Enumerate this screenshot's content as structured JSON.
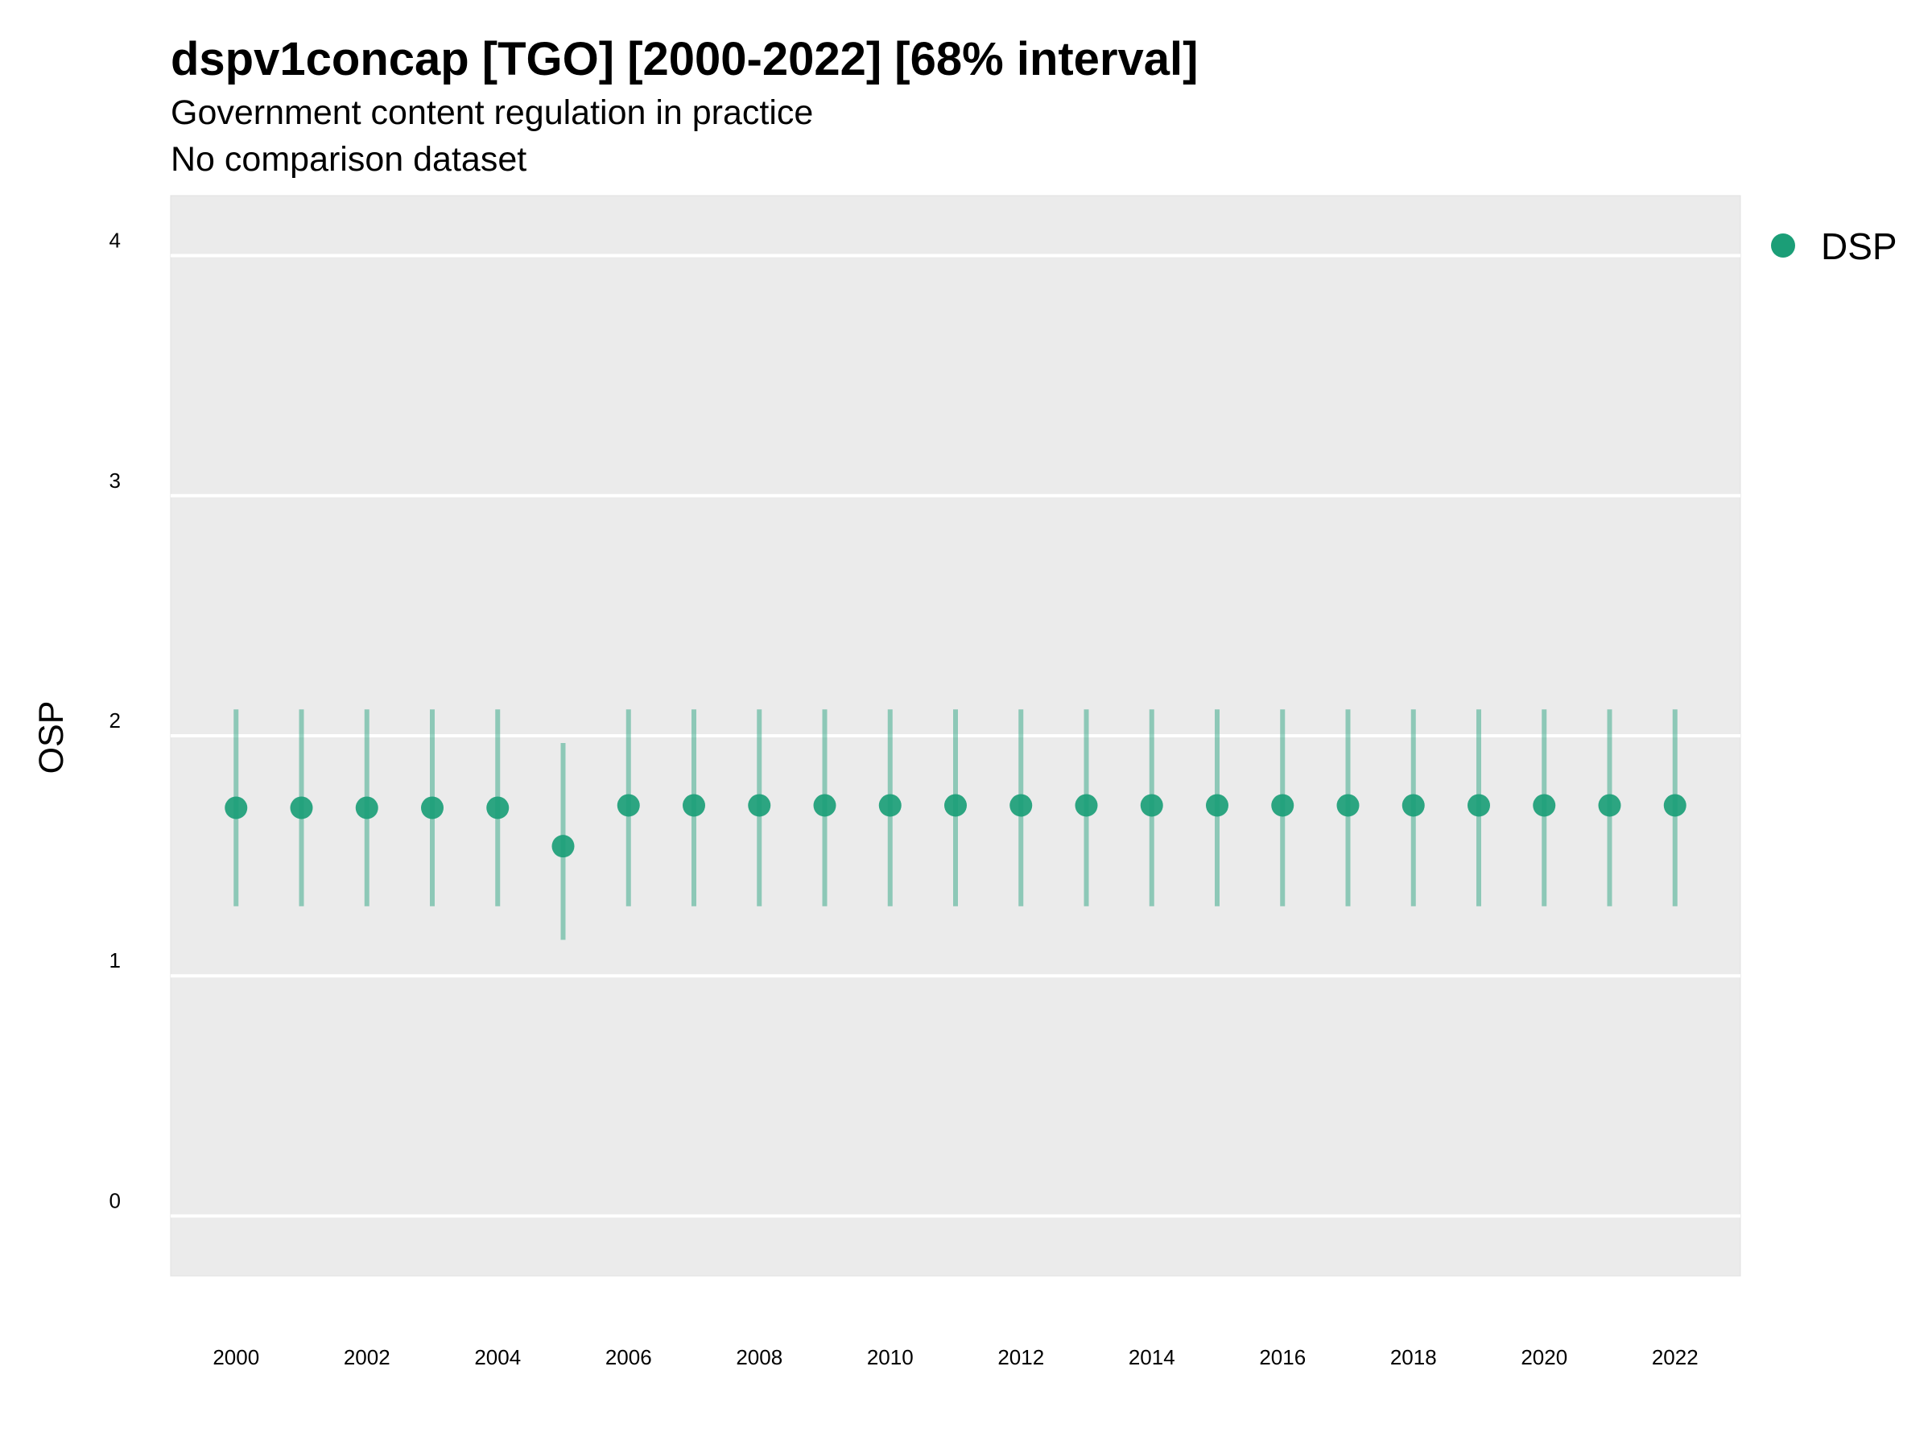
{
  "chart_data": {
    "type": "scatter",
    "title": "dspv1concap [TGO] [2000-2022] [68% interval]",
    "subtitle": [
      "Government content regulation in practice",
      "No comparison dataset"
    ],
    "xlabel": "",
    "ylabel": "OSP",
    "xlim": [
      1999,
      2023
    ],
    "ylim": [
      -0.25,
      4.25
    ],
    "y_ticks": [
      0,
      1,
      2,
      3,
      4
    ],
    "x_ticks": [
      2000,
      2002,
      2004,
      2006,
      2008,
      2010,
      2012,
      2014,
      2016,
      2018,
      2020,
      2022
    ],
    "grid": true,
    "legend_position": "right",
    "series": [
      {
        "name": "DSP",
        "color": "#1b9e77",
        "x": [
          2000,
          2001,
          2002,
          2003,
          2004,
          2005,
          2006,
          2007,
          2008,
          2009,
          2010,
          2011,
          2012,
          2013,
          2014,
          2015,
          2016,
          2017,
          2018,
          2019,
          2020,
          2021,
          2022
        ],
        "y": [
          1.7,
          1.7,
          1.7,
          1.7,
          1.7,
          1.54,
          1.71,
          1.71,
          1.71,
          1.71,
          1.71,
          1.71,
          1.71,
          1.71,
          1.71,
          1.71,
          1.71,
          1.71,
          1.71,
          1.71,
          1.71,
          1.71,
          1.71
        ],
        "lower": [
          1.29,
          1.29,
          1.29,
          1.29,
          1.29,
          1.15,
          1.29,
          1.29,
          1.29,
          1.29,
          1.29,
          1.29,
          1.29,
          1.29,
          1.29,
          1.29,
          1.29,
          1.29,
          1.29,
          1.29,
          1.29,
          1.29,
          1.29
        ],
        "upper": [
          2.11,
          2.11,
          2.11,
          2.11,
          2.11,
          1.97,
          2.11,
          2.11,
          2.11,
          2.11,
          2.11,
          2.11,
          2.11,
          2.11,
          2.11,
          2.11,
          2.11,
          2.11,
          2.11,
          2.11,
          2.11,
          2.11,
          2.11
        ]
      }
    ],
    "colors": {
      "panel_background": "#ebebeb",
      "grid": "#ffffff",
      "series": "#1b9e77"
    }
  }
}
